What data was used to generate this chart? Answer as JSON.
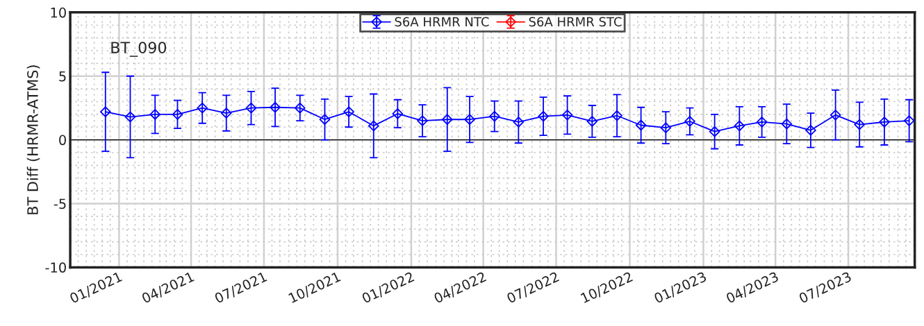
{
  "chart_data": {
    "type": "line",
    "ylabel": "BT Diff (HRMR-ATMS)",
    "annotations": [
      "BT_090"
    ],
    "x": [
      "2020-12-15",
      "2021-01-15",
      "2021-02-15",
      "2021-03-15",
      "2021-04-15",
      "2021-05-15",
      "2021-06-15",
      "2021-07-15",
      "2021-08-15",
      "2021-09-15",
      "2021-10-15",
      "2021-11-15",
      "2021-12-15",
      "2022-01-15",
      "2022-02-15",
      "2022-03-15",
      "2022-04-15",
      "2022-05-15",
      "2022-06-15",
      "2022-07-15",
      "2022-08-15",
      "2022-09-15",
      "2022-10-15",
      "2022-11-15",
      "2022-12-15",
      "2023-01-15",
      "2023-02-15",
      "2023-03-15",
      "2023-04-15",
      "2023-05-15",
      "2023-06-15",
      "2023-07-15",
      "2023-08-15",
      "2023-09-15"
    ],
    "series": [
      {
        "name": "S6A HRMR NTC",
        "color": "#0000ff",
        "values": [
          2.2,
          1.8,
          2.0,
          2.0,
          2.5,
          2.1,
          2.5,
          2.55,
          2.5,
          1.6,
          2.2,
          1.1,
          2.05,
          1.5,
          1.6,
          1.6,
          1.85,
          1.4,
          1.85,
          1.95,
          1.45,
          1.9,
          1.15,
          0.95,
          1.45,
          0.65,
          1.1,
          1.4,
          1.25,
          0.75,
          1.95,
          1.2,
          1.4,
          1.5
        ],
        "errors": [
          3.1,
          3.2,
          1.5,
          1.1,
          1.2,
          1.4,
          1.3,
          1.5,
          1.0,
          1.6,
          1.2,
          2.5,
          1.1,
          1.25,
          2.5,
          1.8,
          1.2,
          1.65,
          1.5,
          1.5,
          1.25,
          1.65,
          1.4,
          1.25,
          1.05,
          1.35,
          1.5,
          1.2,
          1.55,
          1.35,
          1.95,
          1.75,
          1.8,
          1.65
        ]
      },
      {
        "name": "S6A HRMR STC",
        "color": "#ff0000",
        "values": [
          null,
          null,
          null,
          null,
          null,
          null,
          null,
          null,
          null,
          null,
          null,
          null,
          null,
          null,
          null,
          null,
          null,
          null,
          null,
          null,
          null,
          null,
          null,
          null,
          null,
          null,
          null,
          null,
          null,
          null,
          null,
          null,
          null,
          null
        ]
      }
    ],
    "xlim": [
      "2020-11-01",
      "2023-09-22"
    ],
    "xticks": [
      {
        "value": "2021-01-01",
        "label": "01/2021"
      },
      {
        "value": "2021-04-01",
        "label": "04/2021"
      },
      {
        "value": "2021-07-01",
        "label": "07/2021"
      },
      {
        "value": "2021-10-01",
        "label": "10/2021"
      },
      {
        "value": "2022-01-01",
        "label": "01/2022"
      },
      {
        "value": "2022-04-01",
        "label": "04/2022"
      },
      {
        "value": "2022-07-01",
        "label": "07/2022"
      },
      {
        "value": "2022-10-01",
        "label": "10/2022"
      },
      {
        "value": "2023-01-01",
        "label": "01/2023"
      },
      {
        "value": "2023-04-01",
        "label": "04/2023"
      },
      {
        "value": "2023-07-01",
        "label": "07/2023"
      }
    ],
    "ylim": [
      -10,
      10
    ],
    "yticks": [
      -10,
      -5,
      0,
      5,
      10
    ],
    "ref_lines": [
      {
        "axis": "y",
        "value": 0,
        "color": "#000000"
      }
    ],
    "grid": true,
    "legend": "top",
    "marker": "diamond",
    "line_style": "solid"
  }
}
